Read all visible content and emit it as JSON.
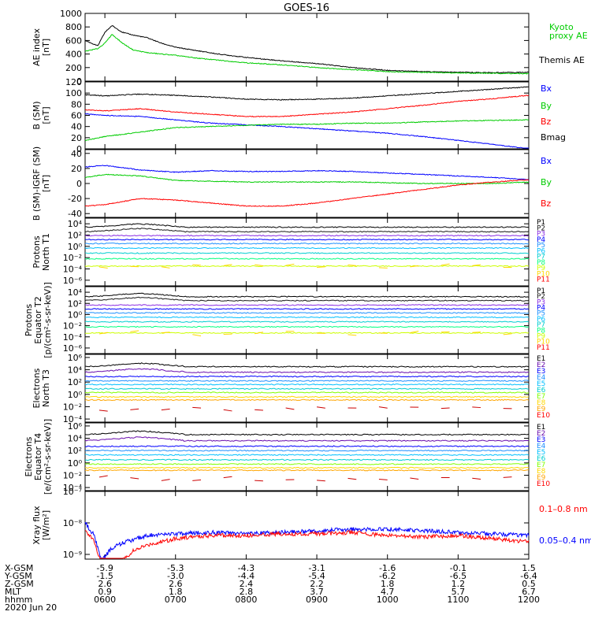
{
  "title": "GOES-16",
  "colors": {
    "black": "#000000",
    "blue": "#0000ff",
    "green": "#00cc00",
    "red": "#ff0000",
    "p_palette": [
      "#000000",
      "#1a1a1a",
      "#8a2be2",
      "#0000ff",
      "#1e90ff",
      "#00bfff",
      "#00ced1",
      "#00ff7f",
      "#ccff00",
      "#ffd700",
      "#ff0000"
    ],
    "e_palette": [
      "#000000",
      "#6a0dad",
      "#0000ff",
      "#1e90ff",
      "#00bfff",
      "#00ced1",
      "#7fff00",
      "#ffd700",
      "#ffa500",
      "#ff0000",
      "#cc0000"
    ]
  },
  "chart_data": {
    "type": "line",
    "x_time_hours": [
      6,
      7,
      8,
      9,
      10,
      11,
      12
    ],
    "x_tick_labels": [
      "0600",
      "0700",
      "0800",
      "0900",
      "1000",
      "1100",
      "1200"
    ],
    "x_range": [
      5.72,
      12
    ],
    "panels": [
      {
        "id": "ae",
        "ylabel": [
          "AE index",
          "[nT]"
        ],
        "yticks": [
          0,
          200,
          400,
          600,
          800,
          1000
        ],
        "ylim": [
          0,
          1000
        ],
        "log": false,
        "legend": [
          {
            "text": "Kyoto",
            "color": "#00cc00"
          },
          {
            "text": "proxy AE",
            "color": "#00cc00"
          },
          {
            "text": "Themis AE",
            "color": "#000000"
          }
        ],
        "series": [
          {
            "name": "Themis AE",
            "color": "#000000",
            "x": [
              5.72,
              5.9,
              6.0,
              6.1,
              6.25,
              6.4,
              6.6,
              6.8,
              7.0,
              7.3,
              7.6,
              8.0,
              8.5,
              9.0,
              9.5,
              10.0,
              10.5,
              11.0,
              11.5,
              12.0
            ],
            "y": [
              600,
              520,
              720,
              820,
              720,
              680,
              640,
              560,
              500,
              450,
              400,
              350,
              300,
              260,
              200,
              160,
              140,
              130,
              125,
              130
            ]
          },
          {
            "name": "Kyoto proxy AE",
            "color": "#00cc00",
            "x": [
              5.72,
              5.9,
              6.0,
              6.1,
              6.25,
              6.4,
              6.6,
              6.8,
              7.0,
              7.3,
              7.6,
              8.0,
              8.5,
              9.0,
              9.5,
              10.0,
              10.5,
              11.0,
              11.5,
              12.0
            ],
            "y": [
              440,
              480,
              560,
              690,
              560,
              460,
              420,
              400,
              380,
              340,
              310,
              270,
              240,
              200,
              170,
              140,
              130,
              120,
              115,
              110
            ]
          }
        ]
      },
      {
        "id": "bsm",
        "ylabel": [
          "B (SM)",
          "[nT]"
        ],
        "yticks": [
          0,
          20,
          40,
          60,
          80,
          100,
          120
        ],
        "ylim": [
          0,
          120
        ],
        "log": false,
        "legend": [
          {
            "text": "Bx",
            "color": "#0000ff"
          },
          {
            "text": "By",
            "color": "#00cc00"
          },
          {
            "text": "Bz",
            "color": "#ff0000"
          },
          {
            "text": "Bmag",
            "color": "#000000"
          }
        ],
        "series": [
          {
            "name": "Bmag",
            "color": "#000000",
            "x": [
              5.72,
              6.0,
              6.5,
              7.0,
              7.5,
              8.0,
              8.5,
              9.0,
              9.5,
              10.0,
              10.5,
              11.0,
              11.5,
              12.0
            ],
            "y": [
              97,
              95,
              98,
              96,
              93,
              89,
              88,
              89,
              91,
              95,
              99,
              103,
              107,
              111
            ]
          },
          {
            "name": "Bx",
            "color": "#0000ff",
            "x": [
              5.72,
              6.0,
              6.5,
              7.0,
              7.5,
              8.0,
              8.5,
              9.0,
              9.5,
              10.0,
              10.5,
              11.0,
              11.5,
              12.0
            ],
            "y": [
              63,
              60,
              58,
              52,
              46,
              43,
              40,
              36,
              32,
              28,
              22,
              15,
              8,
              0
            ]
          },
          {
            "name": "Bz",
            "color": "#ff0000",
            "x": [
              5.72,
              6.0,
              6.5,
              7.0,
              7.5,
              8.0,
              8.5,
              9.0,
              9.5,
              10.0,
              10.5,
              11.0,
              11.5,
              12.0
            ],
            "y": [
              70,
              68,
              72,
              66,
              62,
              58,
              58,
              62,
              66,
              72,
              78,
              85,
              90,
              96
            ]
          },
          {
            "name": "By",
            "color": "#00cc00",
            "x": [
              5.72,
              6.0,
              6.5,
              7.0,
              7.5,
              8.0,
              8.5,
              9.0,
              9.5,
              10.0,
              10.5,
              11.0,
              11.5,
              12.0
            ],
            "y": [
              15,
              22,
              30,
              38,
              40,
              42,
              44,
              44,
              46,
              46,
              48,
              50,
              51,
              52
            ]
          }
        ]
      },
      {
        "id": "bigrf",
        "ylabel": [
          "B (SM)-IGRF (SM)",
          "[nT]"
        ],
        "yticks": [
          -40,
          -20,
          0,
          20,
          40
        ],
        "ylim": [
          -45,
          45
        ],
        "log": false,
        "legend": [
          {
            "text": "Bx",
            "color": "#0000ff"
          },
          {
            "text": "By",
            "color": "#00cc00"
          },
          {
            "text": "Bz",
            "color": "#ff0000"
          }
        ],
        "series": [
          {
            "name": "Bx",
            "color": "#0000ff",
            "x": [
              5.72,
              6.0,
              6.5,
              7.0,
              7.5,
              8.0,
              8.5,
              9.0,
              9.5,
              10.0,
              10.5,
              11.0,
              11.5,
              12.0
            ],
            "y": [
              22,
              24,
              18,
              15,
              17,
              16,
              16,
              17,
              16,
              14,
              12,
              10,
              8,
              5
            ]
          },
          {
            "name": "By",
            "color": "#00cc00",
            "x": [
              5.72,
              6.0,
              6.5,
              7.0,
              7.5,
              8.0,
              8.5,
              9.0,
              9.5,
              10.0,
              10.5,
              11.0,
              11.5,
              12.0
            ],
            "y": [
              8,
              12,
              10,
              4,
              3,
              2,
              2,
              2,
              2,
              1,
              0,
              0,
              0,
              2
            ]
          },
          {
            "name": "Bz",
            "color": "#ff0000",
            "x": [
              5.72,
              6.0,
              6.5,
              7.0,
              7.5,
              8.0,
              8.5,
              9.0,
              9.5,
              10.0,
              10.5,
              11.0,
              11.5,
              12.0
            ],
            "y": [
              -30,
              -28,
              -20,
              -22,
              -26,
              -30,
              -30,
              -26,
              -20,
              -14,
              -8,
              -2,
              2,
              5
            ]
          }
        ]
      },
      {
        "id": "pt1",
        "ylabel": [
          "Protons",
          "North T1"
        ],
        "ytick_labels": [
          "10⁴",
          "10²",
          "10⁰",
          "10⁻²",
          "10⁻⁴",
          "10⁻⁶"
        ],
        "yticks": [
          4,
          2,
          0,
          -2,
          -4,
          -6
        ],
        "ylim": [
          -7,
          5
        ],
        "log": true,
        "channels": [
          "P1",
          "P2",
          "P3",
          "P4",
          "P5",
          "P6",
          "P7",
          "P8",
          "P9",
          "P10",
          "P11"
        ],
        "levels": [
          3.4,
          2.6,
          1.9,
          1.2,
          0.5,
          -0.3,
          -1.2,
          -2.2,
          -3.5
        ],
        "dash_level": -3.5
      },
      {
        "id": "pt2",
        "ylabel": [
          "Protons",
          "Equator T2",
          "[p/(cm²-s-sr-keV)]"
        ],
        "ytick_labels": [
          "10⁴",
          "10²",
          "10⁰",
          "10⁻²",
          "10⁻⁴",
          "10⁻⁶"
        ],
        "yticks": [
          4,
          2,
          0,
          -2,
          -4,
          -6
        ],
        "ylim": [
          -7,
          5
        ],
        "log": true,
        "channels": [
          "P1",
          "P2",
          "P3",
          "P4",
          "P5",
          "P6",
          "P7",
          "P8",
          "P9",
          "P10",
          "P11"
        ],
        "levels": [
          3.2,
          2.5,
          1.7,
          1.0,
          0.3,
          -0.5,
          -1.3,
          -2.2,
          -3.3
        ],
        "dash_level": -3.3
      },
      {
        "id": "et3",
        "ylabel": [
          "Electrons",
          "North T3"
        ],
        "ytick_labels": [
          "10⁶",
          "10⁴",
          "10²",
          "10⁰",
          "10⁻²",
          "10⁻⁴"
        ],
        "yticks": [
          6,
          4,
          2,
          0,
          -2,
          -4
        ],
        "ylim": [
          -4.5,
          6.5
        ],
        "log": true,
        "channels": [
          "E1",
          "E2",
          "E3",
          "E4",
          "E5",
          "E6",
          "E7",
          "E8",
          "E9",
          "E10"
        ],
        "levels": [
          4.5,
          3.6,
          2.9,
          2.2,
          1.6,
          0.9,
          0.3,
          -0.4,
          -0.9
        ],
        "dash_level": -2.3
      },
      {
        "id": "et4",
        "ylabel": [
          "Electrons",
          "Equator T4",
          "[e/(cm²-s-sr-keV)]"
        ],
        "ytick_labels": [
          "10⁶",
          "10⁴",
          "10²",
          "10⁰",
          "10⁻²",
          "10⁻⁴"
        ],
        "yticks": [
          6,
          4,
          2,
          0,
          -2,
          -4
        ],
        "ylim": [
          -4.5,
          6.5
        ],
        "log": true,
        "channels": [
          "E1",
          "E2",
          "E3",
          "E4",
          "E5",
          "E6",
          "E7",
          "E8",
          "E9",
          "E10"
        ],
        "levels": [
          4.6,
          3.6,
          2.7,
          2.0,
          1.3,
          0.5,
          -0.2,
          -0.8,
          -1.2
        ],
        "dash_level": -2.6
      },
      {
        "id": "xray",
        "ylabel": [
          "Xray flux",
          "[W/m²]"
        ],
        "ytick_labels": [
          "10⁻⁷",
          "10⁻⁸",
          "10⁻⁹"
        ],
        "yticks": [
          -7,
          -8,
          -9
        ],
        "ylim": [
          -9.15,
          -7
        ],
        "log": true,
        "legend": [
          {
            "text": "0.1–0.8 nm",
            "color": "#ff0000"
          },
          {
            "text": "0.05–0.4 nm",
            "color": "#0000ff"
          }
        ],
        "series": [
          {
            "name": "0.05–0.4 nm",
            "color": "#0000ff",
            "x": [
              5.72,
              5.85,
              5.95,
              6.1,
              6.3,
              6.6,
              7.0,
              7.5,
              8.0,
              8.5,
              9.0,
              9.5,
              10.0,
              10.5,
              11.0,
              11.5,
              12.0
            ],
            "y": [
              -8.0,
              -8.4,
              -9.2,
              -8.8,
              -8.6,
              -8.4,
              -8.35,
              -8.3,
              -8.35,
              -8.3,
              -8.25,
              -8.2,
              -8.2,
              -8.25,
              -8.3,
              -8.35,
              -8.4
            ]
          },
          {
            "name": "0.1–0.8 nm",
            "color": "#ff0000",
            "x": [
              5.72,
              5.85,
              5.95,
              6.2,
              6.4,
              6.6,
              7.0,
              7.5,
              8.0,
              8.5,
              9.0,
              9.5,
              10.0,
              10.5,
              11.0,
              11.5,
              12.0
            ],
            "y": [
              -8.2,
              -8.6,
              -9.3,
              -9.3,
              -8.9,
              -8.7,
              -8.5,
              -8.4,
              -8.4,
              -8.35,
              -8.35,
              -8.3,
              -8.4,
              -8.45,
              -8.4,
              -8.5,
              -8.6
            ]
          }
        ]
      }
    ],
    "footer": {
      "rows": [
        {
          "label": "X-GSM",
          "values": [
            "-5.9",
            "-5.3",
            "-4.3",
            "-3.1",
            "-1.6",
            "-0.1",
            "1.5"
          ]
        },
        {
          "label": "Y-GSM",
          "values": [
            "-1.5",
            "-3.0",
            "-4.4",
            "-5.4",
            "-6.2",
            "-6.5",
            "-6.4"
          ]
        },
        {
          "label": "Z-GSM",
          "values": [
            "2.6",
            "2.6",
            "2.4",
            "2.2",
            "1.8",
            "1.2",
            "0.5"
          ]
        },
        {
          "label": "MLT",
          "values": [
            "0.9",
            "1.8",
            "2.8",
            "3.7",
            "4.7",
            "5.7",
            "6.7"
          ]
        },
        {
          "label": "hhmm",
          "values": [
            "0600",
            "0700",
            "0800",
            "0900",
            "1000",
            "1100",
            "1200"
          ]
        }
      ],
      "date": "2020 Jun 20"
    }
  }
}
